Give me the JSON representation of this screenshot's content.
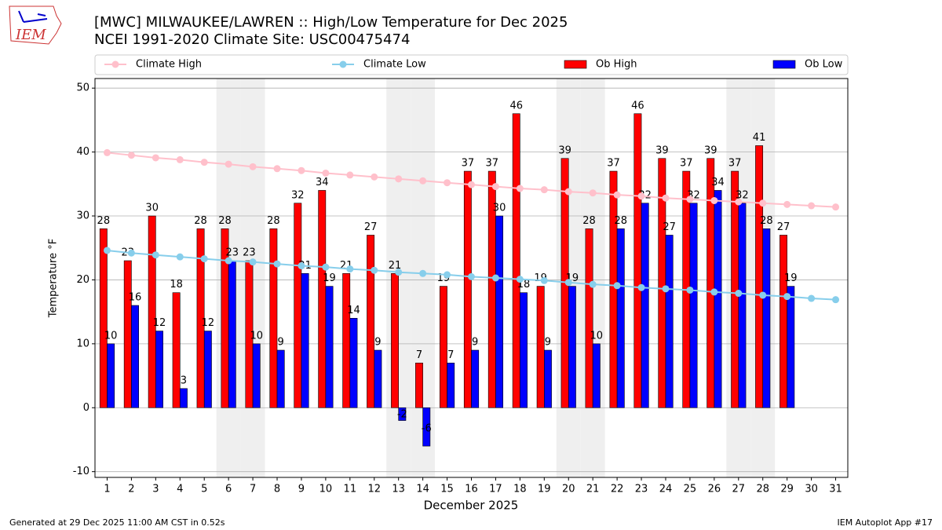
{
  "chart_data": {
    "type": "bar",
    "logo": "IEM",
    "title": "[MWC] MILWAUKEE/LAWREN :: High/Low Temperature for Dec 2025",
    "subtitle": "NCEI 1991-2020 Climate Site: USC00475474",
    "x_label": "December 2025",
    "y_label": "Temperature °F",
    "footer_left": "Generated at 29 Dec 2025 11:00 AM CST in 0.52s",
    "footer_right": "IEM Autoplot App #17",
    "categories": [
      "1",
      "2",
      "3",
      "4",
      "5",
      "6",
      "7",
      "8",
      "9",
      "10",
      "11",
      "12",
      "13",
      "14",
      "15",
      "16",
      "17",
      "18",
      "19",
      "20",
      "21",
      "22",
      "23",
      "24",
      "25",
      "26",
      "27",
      "28",
      "29",
      "30",
      "31"
    ],
    "shaded_categories": [
      "6",
      "7",
      "13",
      "14",
      "20",
      "21",
      "27",
      "28"
    ],
    "series": [
      {
        "name": "Climate High",
        "type": "line",
        "color": "#ffc0cb",
        "values": [
          39.9,
          39.5,
          39.1,
          38.8,
          38.4,
          38.1,
          37.7,
          37.4,
          37.1,
          36.7,
          36.4,
          36.1,
          35.8,
          35.5,
          35.2,
          34.9,
          34.6,
          34.3,
          34.1,
          33.8,
          33.6,
          33.3,
          33.1,
          32.8,
          32.6,
          32.4,
          32.2,
          32.0,
          31.8,
          31.6,
          31.4
        ]
      },
      {
        "name": "Climate Low",
        "type": "line",
        "color": "#87ceeb",
        "values": [
          24.6,
          24.2,
          23.9,
          23.6,
          23.3,
          23.0,
          22.8,
          22.5,
          22.2,
          22.0,
          21.7,
          21.5,
          21.2,
          21.0,
          20.8,
          20.5,
          20.3,
          20.1,
          19.9,
          19.6,
          19.3,
          19.1,
          18.8,
          18.6,
          18.4,
          18.1,
          17.9,
          17.6,
          17.4,
          17.1,
          16.9
        ]
      },
      {
        "name": "Ob High",
        "type": "bar",
        "color": "#ff0000",
        "values": [
          28,
          23,
          30,
          18,
          28,
          28,
          23,
          28,
          32,
          34,
          21,
          27,
          21,
          7,
          19,
          37,
          37,
          46,
          19,
          39,
          28,
          37,
          46,
          39,
          37,
          39,
          37,
          41,
          27,
          null,
          null
        ]
      },
      {
        "name": "Ob Low",
        "type": "bar",
        "color": "#0000ff",
        "values": [
          10,
          16,
          12,
          3,
          12,
          23,
          10,
          9,
          21,
          19,
          14,
          9,
          -2,
          -6,
          7,
          9,
          30,
          18,
          9,
          19,
          10,
          28,
          32,
          27,
          32,
          34,
          32,
          28,
          19,
          null,
          null
        ]
      }
    ],
    "ylim": [
      -10.9,
      51.5
    ],
    "yticks": [
      -10,
      0,
      10,
      20,
      30,
      40,
      50
    ],
    "grid": "y",
    "legend": "top"
  }
}
